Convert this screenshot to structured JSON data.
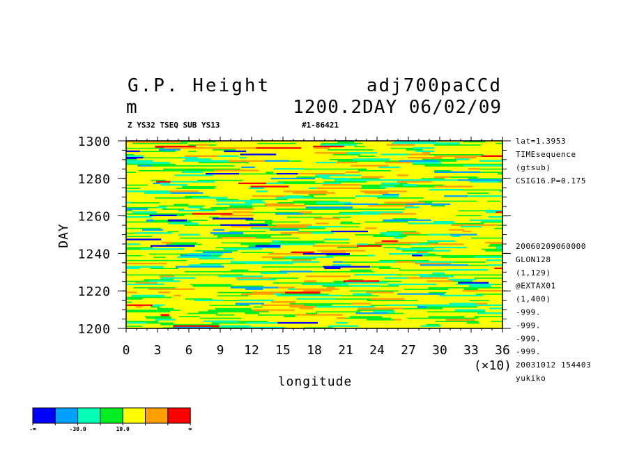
{
  "header": {
    "title_left": "G.P. Height",
    "title_right": "adj700paCCd",
    "units": "m",
    "time_info": "1200.2DAY 06/02/09",
    "subtitle": "Z YS32 TSEQ SUB YS13",
    "run_id": "#1-86421"
  },
  "side_info": {
    "top_lines": [
      "lat=1.3953",
      "TIMEsequence",
      "(gtsub)",
      "CSIG16.P=0.175"
    ],
    "bottom_lines": [
      "20060209060000",
      "GLON128",
      "(1,129)",
      "@EXTAX01",
      "(1,400)",
      "-999.",
      "-999.",
      "-999.",
      "-999.",
      "20031012 154403",
      "yukiko"
    ]
  },
  "chart_data": {
    "type": "heatmap",
    "title": "G.P. Height",
    "xlabel": "longitude",
    "ylabel": "DAY",
    "x_multiplier_label": "(×10)",
    "xlim": [
      0,
      36
    ],
    "ylim": [
      1200,
      1300
    ],
    "x_ticks": [
      "0",
      "3",
      "6",
      "9",
      "12",
      "15",
      "18",
      "21",
      "24",
      "27",
      "30",
      "33",
      "36"
    ],
    "y_ticks": [
      "1200",
      "1220",
      "1240",
      "1260",
      "1280",
      "1300"
    ],
    "colorbar": {
      "colors": [
        "#0000ff",
        "#00a0ff",
        "#00ffb4",
        "#00ee22",
        "#ffff00",
        "#ffa000",
        "#ff0000"
      ],
      "labels": [
        "-∞",
        "-30.0",
        "10.0",
        "∞"
      ]
    },
    "dominant_levels": [
      "#00ee22",
      "#ffff00"
    ]
  }
}
